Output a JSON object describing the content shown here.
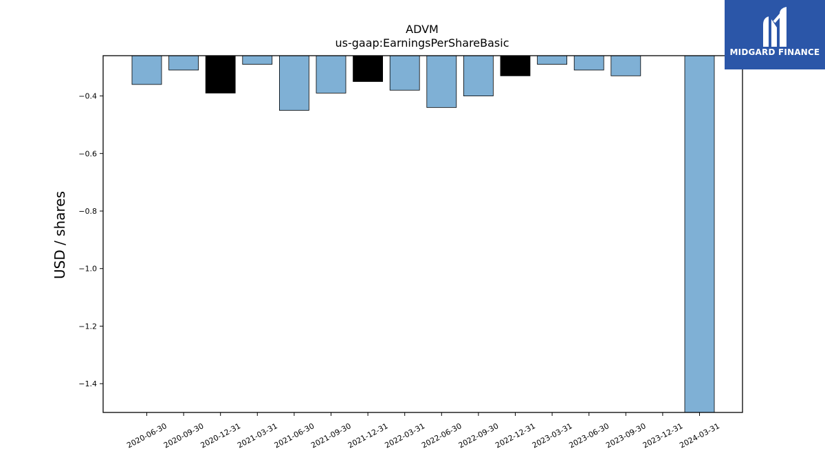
{
  "chart_data": {
    "type": "bar",
    "title": "ADVM",
    "subtitle": "us-gaap:EarningsPerShareBasic",
    "ylabel": "USD / shares",
    "xlabel": "",
    "ylim": [
      -1.5,
      -0.26
    ],
    "yticks": [
      -0.4,
      -0.6,
      -0.8,
      -1.0,
      -1.2,
      -1.4
    ],
    "ytick_labels": [
      "−0.4",
      "−0.6",
      "−0.8",
      "−1.0",
      "−1.2",
      "−1.4"
    ],
    "categories": [
      "2020-06-30",
      "2020-09-30",
      "2020-12-31",
      "2021-03-31",
      "2021-06-30",
      "2021-09-30",
      "2021-12-31",
      "2022-03-31",
      "2022-06-30",
      "2022-09-30",
      "2022-12-31",
      "2023-03-31",
      "2023-06-30",
      "2023-09-30",
      "2023-12-31",
      "2024-03-31"
    ],
    "values": [
      -0.36,
      -0.31,
      -0.39,
      -0.29,
      -0.45,
      -0.39,
      -0.35,
      -0.38,
      -0.44,
      -0.4,
      -0.33,
      -0.29,
      -0.31,
      -0.33,
      null,
      -1.5
    ],
    "highlighted": [
      false,
      false,
      true,
      false,
      false,
      false,
      true,
      false,
      false,
      false,
      true,
      false,
      false,
      false,
      false,
      false
    ],
    "colors": {
      "bar": "#7fb0d5",
      "highlight": "#000000",
      "edge": "#000000"
    },
    "grid": false
  },
  "logo": {
    "text": "MIDGARD FINANCE",
    "bg": "#2b56a8"
  }
}
